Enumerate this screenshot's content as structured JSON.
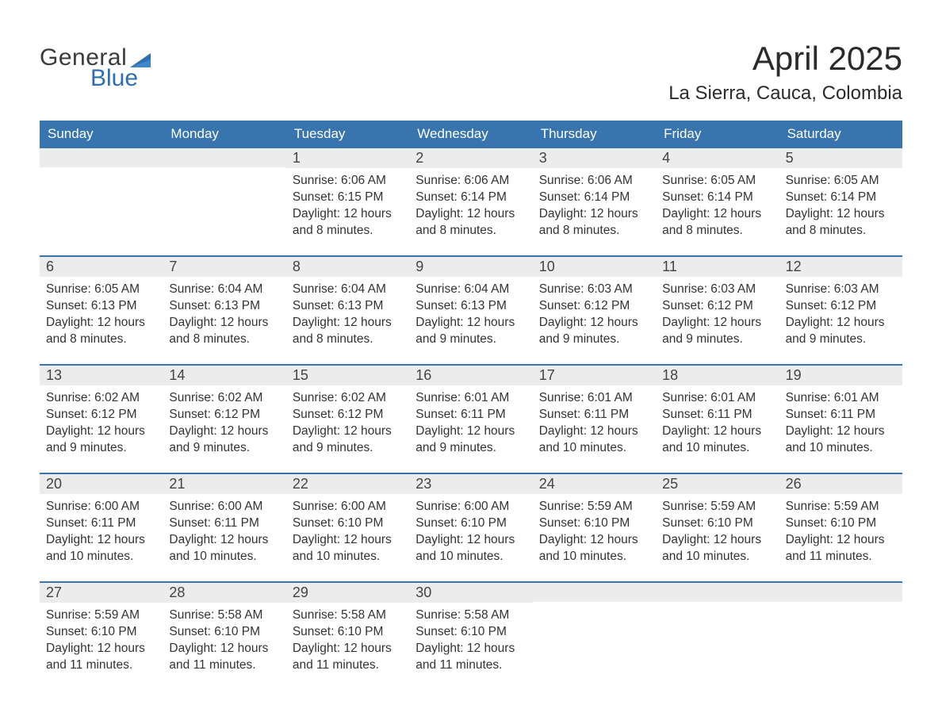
{
  "colors": {
    "header_bg": "#3874ae",
    "header_text": "#ffffff",
    "daynum_bg": "#ececec",
    "daynum_text": "#444444",
    "body_text": "#333333",
    "rule": "#3874ae",
    "logo_gray": "#3b3b3b",
    "logo_blue": "#2f6fb0",
    "page_bg": "#ffffff"
  },
  "typography": {
    "title_fontsize": 42,
    "location_fontsize": 24,
    "dow_fontsize": 17,
    "daynum_fontsize": 18,
    "body_fontsize": 15.5,
    "font_family": "Arial"
  },
  "logo": {
    "line1": "General",
    "line2": "Blue"
  },
  "title": "April 2025",
  "location": "La Sierra, Cauca, Colombia",
  "days_of_week": [
    "Sunday",
    "Monday",
    "Tuesday",
    "Wednesday",
    "Thursday",
    "Friday",
    "Saturday"
  ],
  "weeks": [
    [
      null,
      null,
      {
        "n": "1",
        "sunrise": "6:06 AM",
        "sunset": "6:15 PM",
        "daylight": "12 hours and 8 minutes."
      },
      {
        "n": "2",
        "sunrise": "6:06 AM",
        "sunset": "6:14 PM",
        "daylight": "12 hours and 8 minutes."
      },
      {
        "n": "3",
        "sunrise": "6:06 AM",
        "sunset": "6:14 PM",
        "daylight": "12 hours and 8 minutes."
      },
      {
        "n": "4",
        "sunrise": "6:05 AM",
        "sunset": "6:14 PM",
        "daylight": "12 hours and 8 minutes."
      },
      {
        "n": "5",
        "sunrise": "6:05 AM",
        "sunset": "6:14 PM",
        "daylight": "12 hours and 8 minutes."
      }
    ],
    [
      {
        "n": "6",
        "sunrise": "6:05 AM",
        "sunset": "6:13 PM",
        "daylight": "12 hours and 8 minutes."
      },
      {
        "n": "7",
        "sunrise": "6:04 AM",
        "sunset": "6:13 PM",
        "daylight": "12 hours and 8 minutes."
      },
      {
        "n": "8",
        "sunrise": "6:04 AM",
        "sunset": "6:13 PM",
        "daylight": "12 hours and 8 minutes."
      },
      {
        "n": "9",
        "sunrise": "6:04 AM",
        "sunset": "6:13 PM",
        "daylight": "12 hours and 9 minutes."
      },
      {
        "n": "10",
        "sunrise": "6:03 AM",
        "sunset": "6:12 PM",
        "daylight": "12 hours and 9 minutes."
      },
      {
        "n": "11",
        "sunrise": "6:03 AM",
        "sunset": "6:12 PM",
        "daylight": "12 hours and 9 minutes."
      },
      {
        "n": "12",
        "sunrise": "6:03 AM",
        "sunset": "6:12 PM",
        "daylight": "12 hours and 9 minutes."
      }
    ],
    [
      {
        "n": "13",
        "sunrise": "6:02 AM",
        "sunset": "6:12 PM",
        "daylight": "12 hours and 9 minutes."
      },
      {
        "n": "14",
        "sunrise": "6:02 AM",
        "sunset": "6:12 PM",
        "daylight": "12 hours and 9 minutes."
      },
      {
        "n": "15",
        "sunrise": "6:02 AM",
        "sunset": "6:12 PM",
        "daylight": "12 hours and 9 minutes."
      },
      {
        "n": "16",
        "sunrise": "6:01 AM",
        "sunset": "6:11 PM",
        "daylight": "12 hours and 9 minutes."
      },
      {
        "n": "17",
        "sunrise": "6:01 AM",
        "sunset": "6:11 PM",
        "daylight": "12 hours and 10 minutes."
      },
      {
        "n": "18",
        "sunrise": "6:01 AM",
        "sunset": "6:11 PM",
        "daylight": "12 hours and 10 minutes."
      },
      {
        "n": "19",
        "sunrise": "6:01 AM",
        "sunset": "6:11 PM",
        "daylight": "12 hours and 10 minutes."
      }
    ],
    [
      {
        "n": "20",
        "sunrise": "6:00 AM",
        "sunset": "6:11 PM",
        "daylight": "12 hours and 10 minutes."
      },
      {
        "n": "21",
        "sunrise": "6:00 AM",
        "sunset": "6:11 PM",
        "daylight": "12 hours and 10 minutes."
      },
      {
        "n": "22",
        "sunrise": "6:00 AM",
        "sunset": "6:10 PM",
        "daylight": "12 hours and 10 minutes."
      },
      {
        "n": "23",
        "sunrise": "6:00 AM",
        "sunset": "6:10 PM",
        "daylight": "12 hours and 10 minutes."
      },
      {
        "n": "24",
        "sunrise": "5:59 AM",
        "sunset": "6:10 PM",
        "daylight": "12 hours and 10 minutes."
      },
      {
        "n": "25",
        "sunrise": "5:59 AM",
        "sunset": "6:10 PM",
        "daylight": "12 hours and 10 minutes."
      },
      {
        "n": "26",
        "sunrise": "5:59 AM",
        "sunset": "6:10 PM",
        "daylight": "12 hours and 11 minutes."
      }
    ],
    [
      {
        "n": "27",
        "sunrise": "5:59 AM",
        "sunset": "6:10 PM",
        "daylight": "12 hours and 11 minutes."
      },
      {
        "n": "28",
        "sunrise": "5:58 AM",
        "sunset": "6:10 PM",
        "daylight": "12 hours and 11 minutes."
      },
      {
        "n": "29",
        "sunrise": "5:58 AM",
        "sunset": "6:10 PM",
        "daylight": "12 hours and 11 minutes."
      },
      {
        "n": "30",
        "sunrise": "5:58 AM",
        "sunset": "6:10 PM",
        "daylight": "12 hours and 11 minutes."
      },
      null,
      null,
      null
    ]
  ],
  "labels": {
    "sunrise_prefix": "Sunrise: ",
    "sunset_prefix": "Sunset: ",
    "daylight_prefix": "Daylight: "
  }
}
